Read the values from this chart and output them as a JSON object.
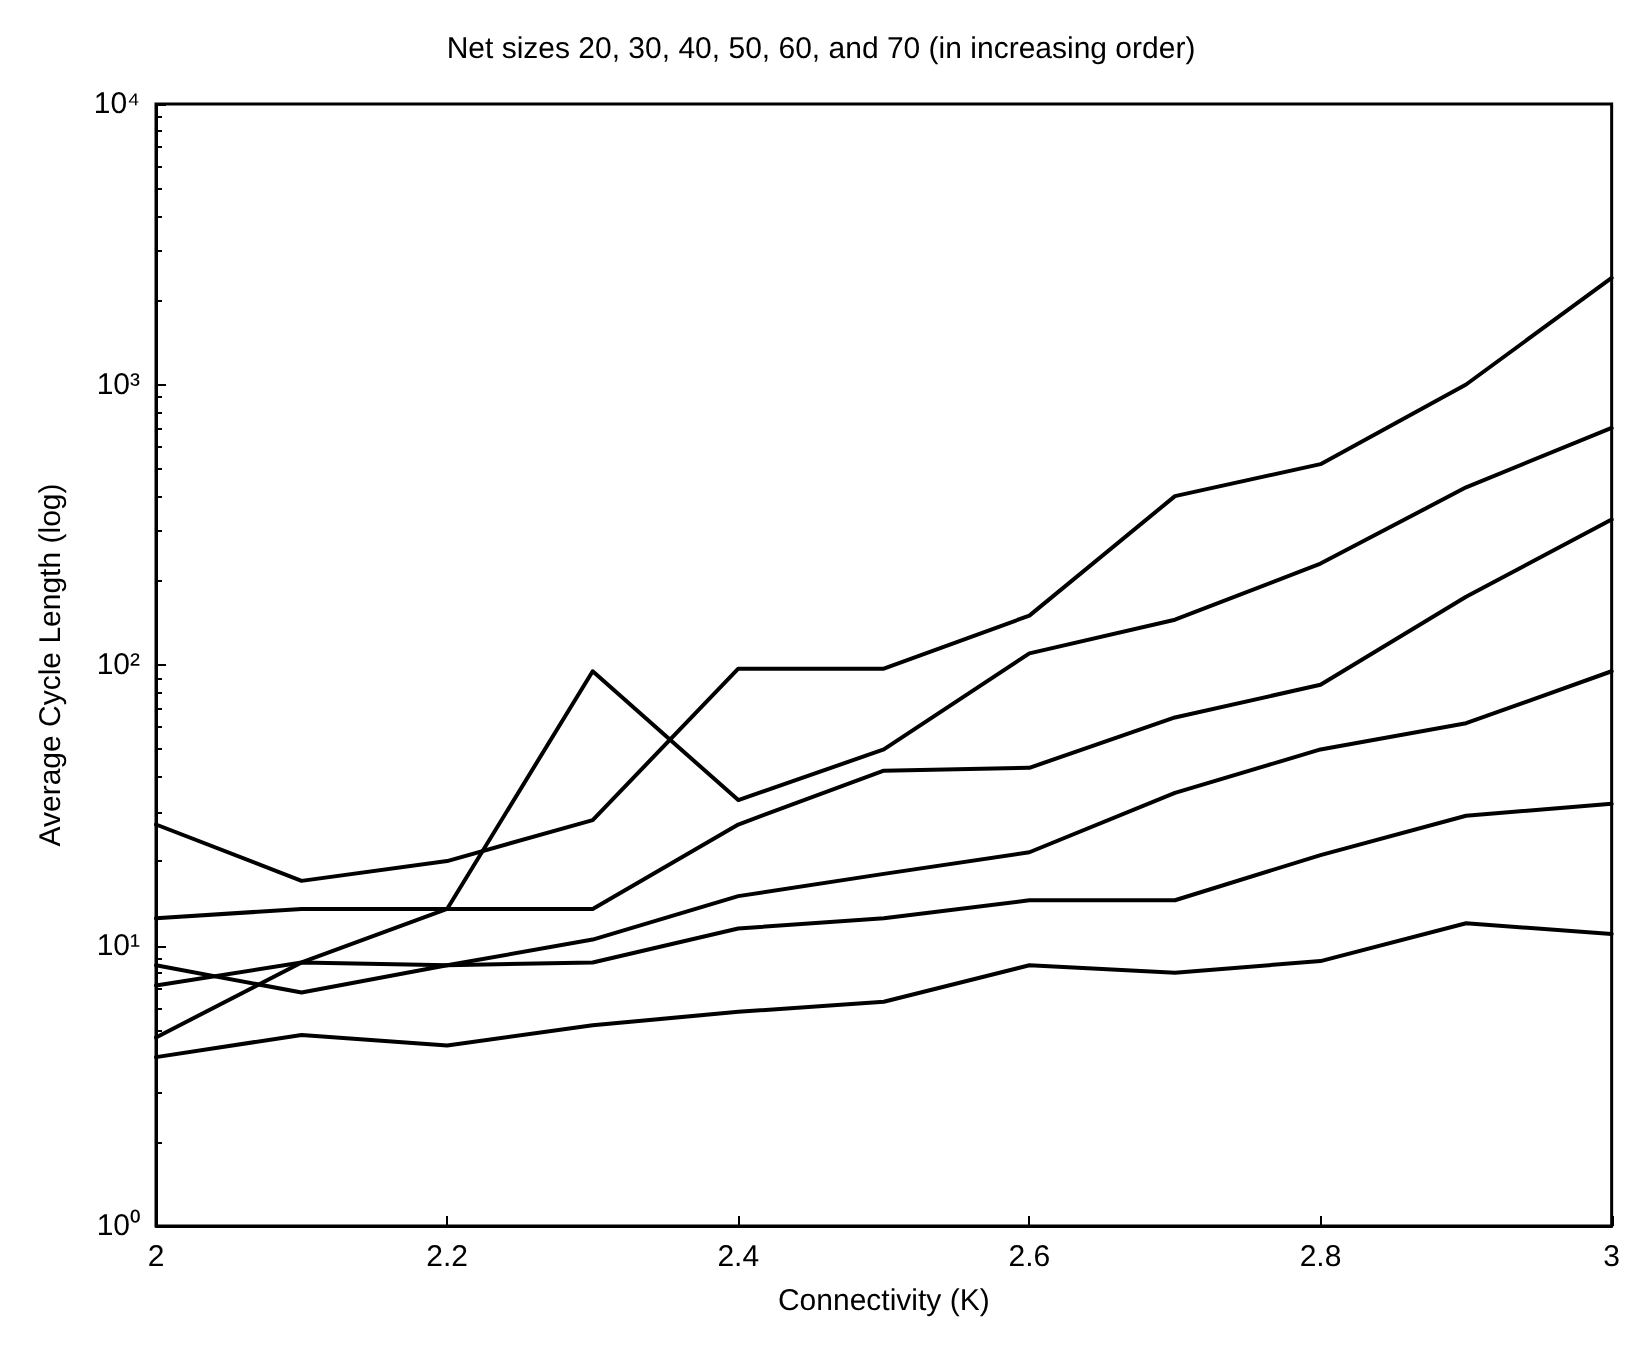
{
  "chart_data": {
    "type": "line",
    "title": "Net sizes 20, 30, 40, 50, 60, and 70 (in increasing order)",
    "xlabel": "Connectivity (K)",
    "ylabel": "Average Cycle Length (log)",
    "x": [
      2,
      2.1,
      2.2,
      2.3,
      2.4,
      2.5,
      2.6,
      2.7,
      2.8,
      2.9,
      3
    ],
    "series": [
      {
        "color": "#000000",
        "values": [
          4,
          4.8,
          4.4,
          5.2,
          5.8,
          6.3,
          8.5,
          8,
          8.8,
          12,
          11
        ]
      },
      {
        "color": "#000000",
        "values": [
          8.5,
          6.8,
          8.5,
          8.7,
          11.5,
          12.5,
          14.5,
          14.5,
          21,
          29,
          32
        ]
      },
      {
        "color": "#000000",
        "values": [
          7.2,
          8.7,
          8.5,
          10.5,
          15,
          18,
          21.5,
          35,
          50,
          62,
          95
        ]
      },
      {
        "color": "#000000",
        "values": [
          12.5,
          13.5,
          13.5,
          13.5,
          27,
          42,
          43,
          65,
          85,
          175,
          330
        ]
      },
      {
        "color": "#000000",
        "values": [
          4.7,
          8.7,
          13.5,
          95,
          33,
          50,
          110,
          145,
          230,
          430,
          700
        ]
      },
      {
        "color": "#000000",
        "values": [
          27,
          17,
          20,
          28,
          97,
          97,
          150,
          400,
          520,
          1000,
          2400
        ]
      }
    ],
    "xlim": [
      2,
      3
    ],
    "xticks": [
      2,
      2.2,
      2.4,
      2.6,
      2.8,
      3
    ],
    "ylim": [
      1,
      10000
    ],
    "yticks": [
      {
        "value": 1,
        "label": "10⁰"
      },
      {
        "value": 10,
        "label": "10¹"
      },
      {
        "value": 100,
        "label": "10²"
      },
      {
        "value": 1000,
        "label": "10³"
      },
      {
        "value": 10000,
        "label": "10⁴"
      }
    ],
    "log": "y",
    "grid": false,
    "marker": "none",
    "line_style": "solid"
  }
}
